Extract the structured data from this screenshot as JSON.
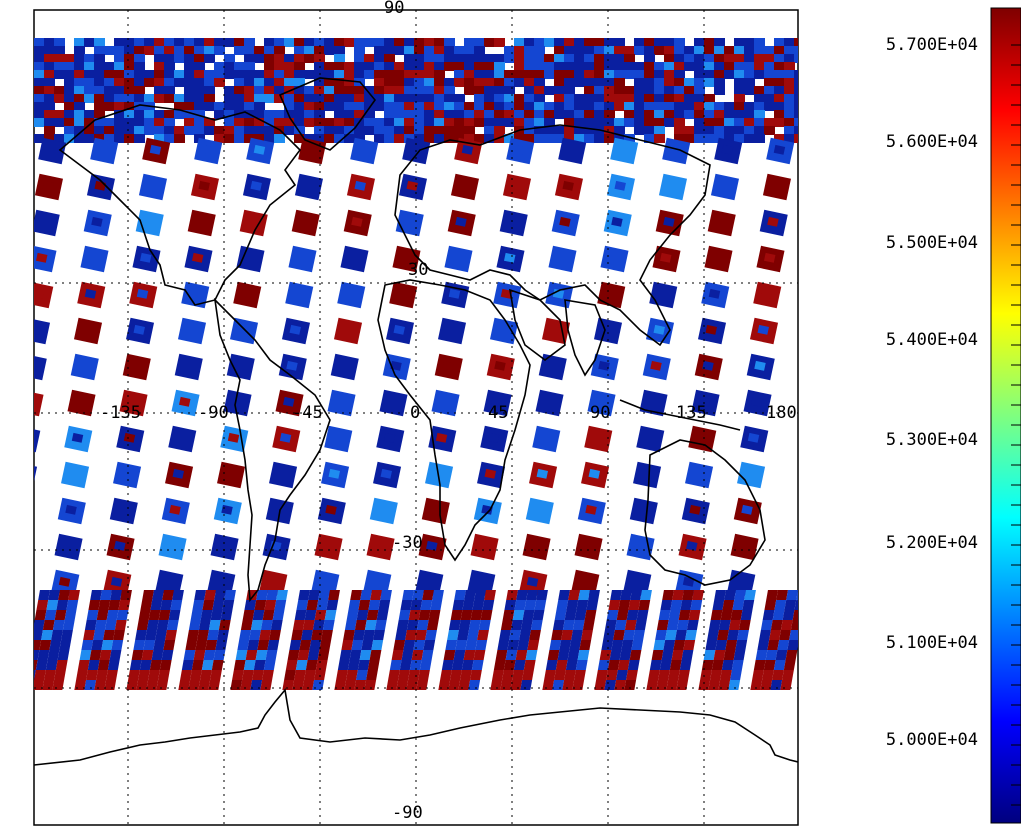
{
  "map": {
    "projection": "cylindrical",
    "lat_labels": [
      "90",
      "30",
      "-30",
      "-90"
    ],
    "lon_labels": [
      "-135",
      "-90",
      "-45",
      "0",
      "45",
      "90",
      "135",
      "180"
    ],
    "gridline_style": "dotted",
    "swath_colors": [
      "#0a1fa0",
      "#1446d2",
      "#1f8cf0",
      "#7f0000",
      "#a00a0a"
    ],
    "continent_outline_color": "#000000",
    "background_color": "#ffffff"
  },
  "colorbar": {
    "tick_labels": [
      "5.700E+04",
      "5.600E+04",
      "5.500E+04",
      "5.400E+04",
      "5.300E+04",
      "5.200E+04",
      "5.100E+04",
      "5.000E+04"
    ],
    "colormap": [
      "#00007f",
      "#0000ff",
      "#007fff",
      "#00ffff",
      "#7fff7f",
      "#ffff00",
      "#ff7f00",
      "#ff0000",
      "#7f0000"
    ]
  }
}
